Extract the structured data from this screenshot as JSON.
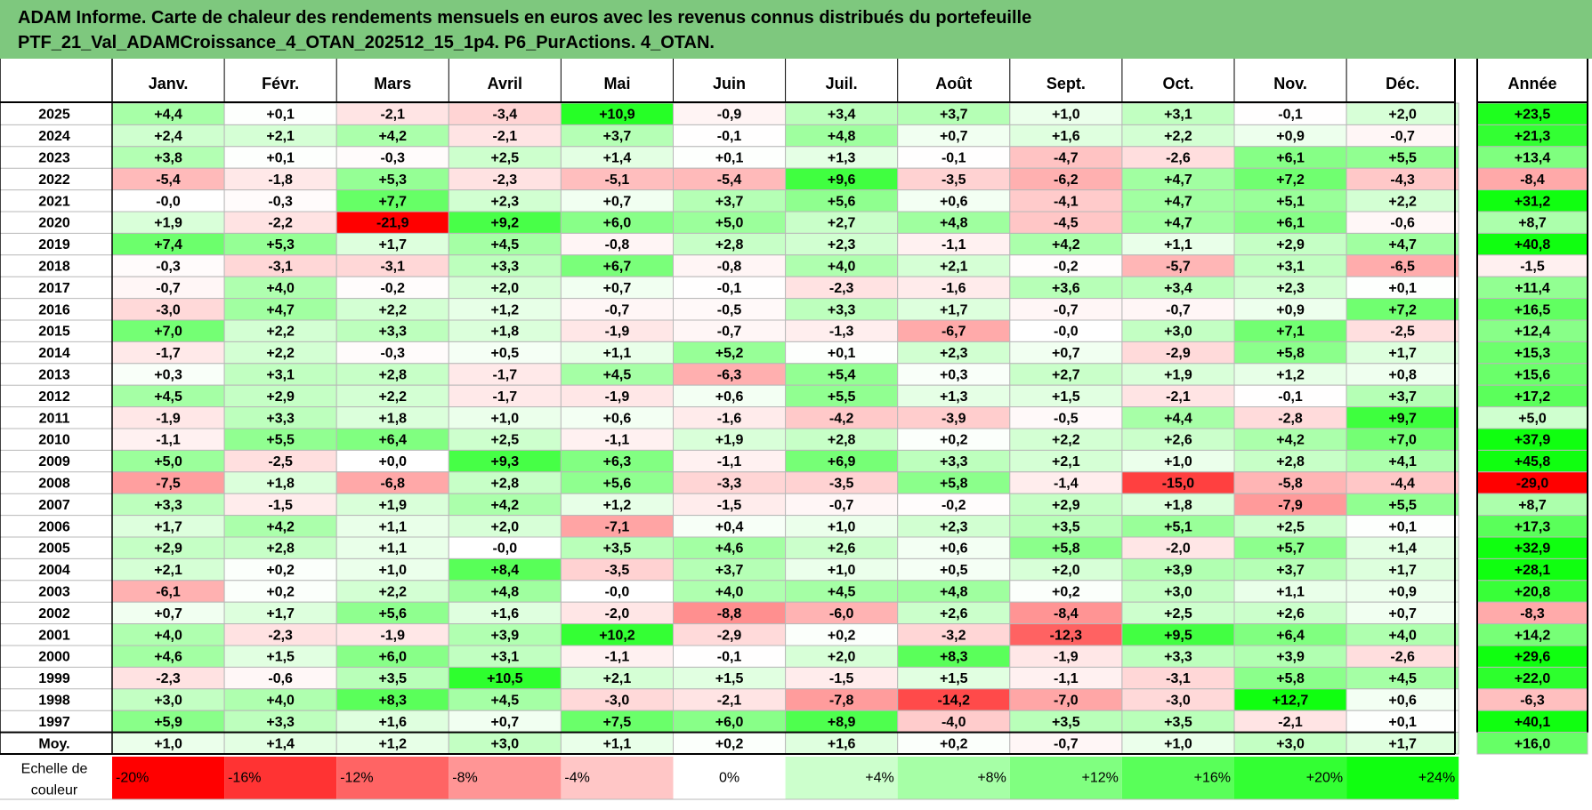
{
  "title": {
    "line1": "ADAM Informe. Carte de chaleur des rendements mensuels en euros avec les revenus connus distribués du portefeuille",
    "line2": "PTF_21_Val_ADAMCroissance_4_OTAN_202512_15_1p4. P6_PurActions. 4_OTAN."
  },
  "chart_data": {
    "type": "heatmap",
    "months": [
      "Janv.",
      "Févr.",
      "Mars",
      "Avril",
      "Mai",
      "Juin",
      "Juil.",
      "Août",
      "Sept.",
      "Oct.",
      "Nov.",
      "Déc."
    ],
    "year_header": "Année",
    "rows": [
      {
        "label": "2025",
        "values": [
          4.4,
          0.1,
          -2.1,
          -3.4,
          10.9,
          -0.9,
          3.4,
          3.7,
          1.0,
          3.1,
          -0.1,
          2.0
        ],
        "year": 23.5
      },
      {
        "label": "2024",
        "values": [
          2.4,
          2.1,
          4.2,
          -2.1,
          3.7,
          -0.1,
          4.8,
          0.7,
          1.6,
          2.2,
          0.9,
          -0.7
        ],
        "year": 21.3
      },
      {
        "label": "2023",
        "values": [
          3.8,
          0.1,
          -0.3,
          2.5,
          1.4,
          0.1,
          1.3,
          -0.1,
          -4.7,
          -2.6,
          6.1,
          5.5
        ],
        "year": 13.4
      },
      {
        "label": "2022",
        "values": [
          -5.4,
          -1.8,
          5.3,
          -2.3,
          -5.1,
          -5.4,
          9.6,
          -3.5,
          -6.2,
          4.7,
          7.2,
          -4.3
        ],
        "year": -8.4
      },
      {
        "label": "2021",
        "values": [
          -0.0,
          -0.3,
          7.7,
          2.3,
          0.7,
          3.7,
          5.6,
          0.6,
          -4.1,
          4.7,
          5.1,
          2.2
        ],
        "year": 31.2
      },
      {
        "label": "2020",
        "values": [
          1.9,
          -2.2,
          -21.9,
          9.2,
          6.0,
          5.0,
          2.7,
          4.8,
          -4.5,
          4.7,
          6.1,
          -0.6
        ],
        "year": 8.7
      },
      {
        "label": "2019",
        "values": [
          7.4,
          5.3,
          1.7,
          4.5,
          -0.8,
          2.8,
          2.3,
          -1.1,
          4.2,
          1.1,
          2.9,
          4.7
        ],
        "year": 40.8
      },
      {
        "label": "2018",
        "values": [
          -0.3,
          -3.1,
          -3.1,
          3.3,
          6.7,
          -0.8,
          4.0,
          2.1,
          -0.2,
          -5.7,
          3.1,
          -6.5
        ],
        "year": -1.5
      },
      {
        "label": "2017",
        "values": [
          -0.7,
          4.0,
          -0.2,
          2.0,
          0.7,
          -0.1,
          -2.3,
          -1.6,
          3.6,
          3.4,
          2.3,
          0.1
        ],
        "year": 11.4
      },
      {
        "label": "2016",
        "values": [
          -3.0,
          4.7,
          2.2,
          1.2,
          -0.7,
          -0.5,
          3.3,
          1.7,
          -0.7,
          -0.7,
          0.9,
          7.2
        ],
        "year": 16.5
      },
      {
        "label": "2015",
        "values": [
          7.0,
          2.2,
          3.3,
          1.8,
          -1.9,
          -0.7,
          -1.3,
          -6.7,
          -0.0,
          3.0,
          7.1,
          -2.5
        ],
        "year": 12.4
      },
      {
        "label": "2014",
        "values": [
          -1.7,
          2.2,
          -0.3,
          0.5,
          1.1,
          5.2,
          0.1,
          2.3,
          0.7,
          -2.9,
          5.8,
          1.7
        ],
        "year": 15.3
      },
      {
        "label": "2013",
        "values": [
          0.3,
          3.1,
          2.8,
          -1.7,
          4.5,
          -6.3,
          5.4,
          0.3,
          2.7,
          1.9,
          1.2,
          0.8
        ],
        "year": 15.6
      },
      {
        "label": "2012",
        "values": [
          4.5,
          2.9,
          2.2,
          -1.7,
          -1.9,
          0.6,
          5.5,
          1.3,
          1.5,
          -2.1,
          -0.1,
          3.7
        ],
        "year": 17.2
      },
      {
        "label": "2011",
        "values": [
          -1.9,
          3.3,
          1.8,
          1.0,
          0.6,
          -1.6,
          -4.2,
          -3.9,
          -0.5,
          4.4,
          -2.8,
          9.7
        ],
        "year": 5.0
      },
      {
        "label": "2010",
        "values": [
          -1.1,
          5.5,
          6.4,
          2.5,
          -1.1,
          1.9,
          2.8,
          0.2,
          2.2,
          2.6,
          4.2,
          7.0
        ],
        "year": 37.9
      },
      {
        "label": "2009",
        "values": [
          5.0,
          -2.5,
          0.0,
          9.3,
          6.3,
          -1.1,
          6.9,
          3.3,
          2.1,
          1.0,
          2.8,
          4.1
        ],
        "year": 45.8
      },
      {
        "label": "2008",
        "values": [
          -7.5,
          1.8,
          -6.8,
          2.8,
          5.6,
          -3.3,
          -3.5,
          5.8,
          -1.4,
          -15.0,
          -5.8,
          -4.4
        ],
        "year": -29.0
      },
      {
        "label": "2007",
        "values": [
          3.3,
          -1.5,
          1.9,
          4.2,
          1.2,
          -1.5,
          -0.7,
          -0.2,
          2.9,
          1.8,
          -7.9,
          5.5
        ],
        "year": 8.7
      },
      {
        "label": "2006",
        "values": [
          1.7,
          4.2,
          1.1,
          2.0,
          -7.1,
          0.4,
          1.0,
          2.3,
          3.5,
          5.1,
          2.5,
          0.1
        ],
        "year": 17.3
      },
      {
        "label": "2005",
        "values": [
          2.9,
          2.8,
          1.1,
          -0.0,
          3.5,
          4.6,
          2.6,
          0.6,
          5.8,
          -2.0,
          5.7,
          1.4
        ],
        "year": 32.9
      },
      {
        "label": "2004",
        "values": [
          2.1,
          0.2,
          1.0,
          8.4,
          -3.5,
          3.7,
          1.0,
          0.5,
          2.0,
          3.9,
          3.7,
          1.7
        ],
        "year": 28.1
      },
      {
        "label": "2003",
        "values": [
          -6.1,
          0.2,
          2.2,
          4.8,
          -0.0,
          4.0,
          4.5,
          4.8,
          0.2,
          3.0,
          1.1,
          0.9
        ],
        "year": 20.8
      },
      {
        "label": "2002",
        "values": [
          0.7,
          1.7,
          5.6,
          1.6,
          -2.0,
          -8.8,
          -6.0,
          2.6,
          -8.4,
          2.5,
          2.6,
          0.7
        ],
        "year": -8.3
      },
      {
        "label": "2001",
        "values": [
          4.0,
          -2.3,
          -1.9,
          3.9,
          10.2,
          -2.9,
          0.2,
          -3.2,
          -12.3,
          9.5,
          6.4,
          4.0
        ],
        "year": 14.2
      },
      {
        "label": "2000",
        "values": [
          4.6,
          1.5,
          6.0,
          3.1,
          -1.1,
          -0.1,
          2.0,
          8.3,
          -1.9,
          3.3,
          3.9,
          -2.6
        ],
        "year": 29.6
      },
      {
        "label": "1999",
        "values": [
          -2.3,
          -0.6,
          3.5,
          10.5,
          2.1,
          1.5,
          -1.5,
          1.5,
          -1.1,
          -3.1,
          5.8,
          4.5
        ],
        "year": 22.0
      },
      {
        "label": "1998",
        "values": [
          3.0,
          4.0,
          8.3,
          4.5,
          -3.0,
          -2.1,
          -7.8,
          -14.2,
          -7.0,
          -3.0,
          12.7,
          0.6
        ],
        "year": -6.3
      },
      {
        "label": "1997",
        "values": [
          5.9,
          3.3,
          1.6,
          0.7,
          7.5,
          6.0,
          8.9,
          -4.0,
          3.5,
          3.5,
          -2.1,
          0.1
        ],
        "year": 40.1
      }
    ],
    "average": {
      "label": "Moy.",
      "values": [
        1.0,
        1.4,
        1.2,
        3.0,
        1.1,
        0.2,
        1.6,
        0.2,
        -0.7,
        1.0,
        3.0,
        1.7
      ],
      "year": 16.0
    },
    "scale": {
      "label_line1": "Echelle de",
      "label_line2": "couleur",
      "steps": [
        {
          "label": "-20%",
          "color": "#ff0000"
        },
        {
          "label": "-16%",
          "color": "#ff3333"
        },
        {
          "label": "-12%",
          "color": "#ff6464"
        },
        {
          "label": "-8%",
          "color": "#ff9595"
        },
        {
          "label": "-4%",
          "color": "#ffc6c6"
        },
        {
          "label": "0%",
          "color": "#ffffff"
        },
        {
          "label": "+4%",
          "color": "#ccffcc"
        },
        {
          "label": "+8%",
          "color": "#a6ffa6"
        },
        {
          "label": "+12%",
          "color": "#80ff80"
        },
        {
          "label": "+16%",
          "color": "#59ff59"
        },
        {
          "label": "+20%",
          "color": "#33ff33"
        },
        {
          "label": "+24%",
          "color": "#10ff10"
        }
      ]
    }
  }
}
